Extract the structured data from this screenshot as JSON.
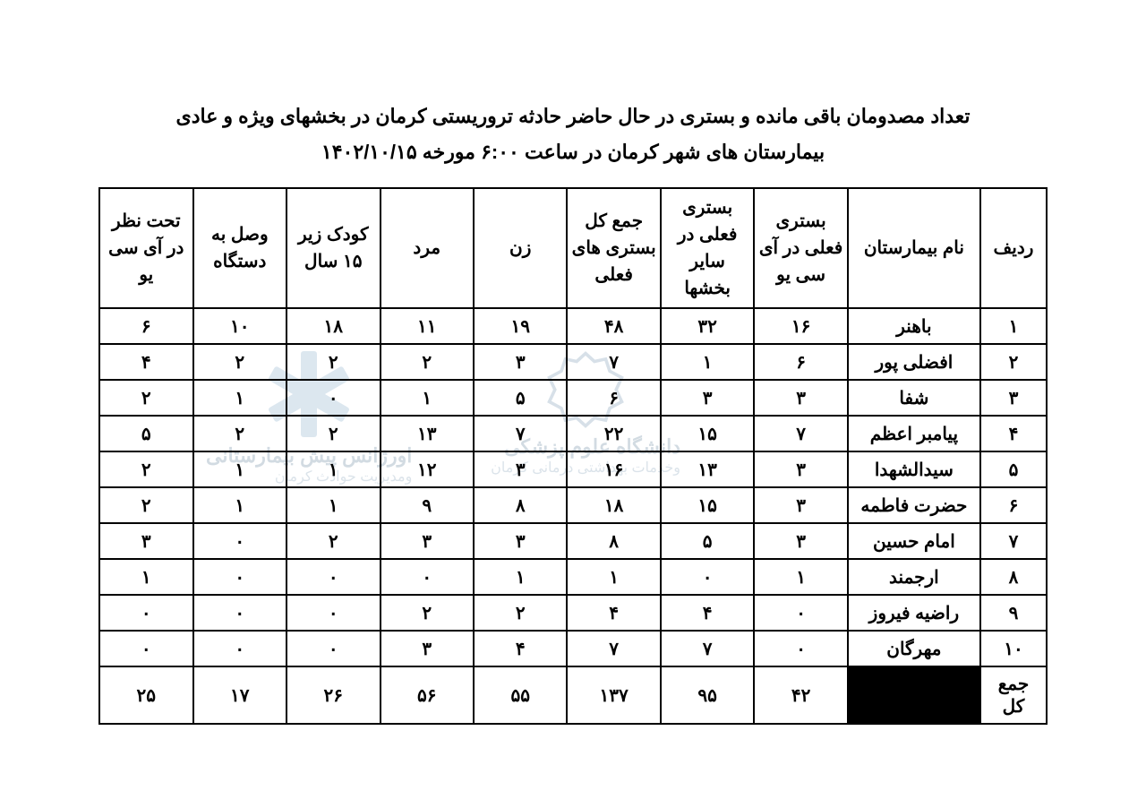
{
  "title": {
    "line1": "تعداد مصدومان باقی مانده و بستری در حال حاضر حادثه تروریستی کرمان در بخشهای ویژه و عادی",
    "line2": "بیمارستان های شهر کرمان در ساعت ۶:۰۰ مورخه ۱۴۰۲/۱۰/۱۵"
  },
  "table": {
    "columns": [
      "ردیف",
      "نام بیمارستان",
      "بستری فعلی در آی سی یو",
      "بستری فعلی در سایر بخشها",
      "جمع کل بستری های فعلی",
      "زن",
      "مرد",
      "کودک زیر ۱۵ سال",
      "وصل به دستگاه",
      "تحت نظر در آی سی یو"
    ],
    "rows": [
      [
        "۱",
        "باهنر",
        "۱۶",
        "۳۲",
        "۴۸",
        "۱۹",
        "۱۱",
        "۱۸",
        "۱۰",
        "۶"
      ],
      [
        "۲",
        "افضلی پور",
        "۶",
        "۱",
        "۷",
        "۳",
        "۲",
        "۲",
        "۲",
        "۴"
      ],
      [
        "۳",
        "شفا",
        "۳",
        "۳",
        "۶",
        "۵",
        "۱",
        "۰",
        "۱",
        "۲"
      ],
      [
        "۴",
        "پیامبر اعظم",
        "۷",
        "۱۵",
        "۲۲",
        "۷",
        "۱۳",
        "۲",
        "۲",
        "۵"
      ],
      [
        "۵",
        "سیدالشهدا",
        "۳",
        "۱۳",
        "۱۶",
        "۳",
        "۱۲",
        "۱",
        "۱",
        "۲"
      ],
      [
        "۶",
        "حضرت فاطمه",
        "۳",
        "۱۵",
        "۱۸",
        "۸",
        "۹",
        "۱",
        "۱",
        "۲"
      ],
      [
        "۷",
        "امام حسین",
        "۳",
        "۵",
        "۸",
        "۳",
        "۳",
        "۲",
        "۰",
        "۳"
      ],
      [
        "۸",
        "ارجمند",
        "۱",
        "۰",
        "۱",
        "۱",
        "۰",
        "۰",
        "۰",
        "۱"
      ],
      [
        "۹",
        "راضیه فیروز",
        "۰",
        "۴",
        "۴",
        "۲",
        "۲",
        "۰",
        "۰",
        "۰"
      ],
      [
        "۱۰",
        "مهرگان",
        "۰",
        "۷",
        "۷",
        "۴",
        "۳",
        "۰",
        "۰",
        "۰"
      ]
    ],
    "total": {
      "label": "جمع کل",
      "values": [
        "۴۲",
        "۹۵",
        "۱۳۷",
        "۵۵",
        "۵۶",
        "۲۶",
        "۱۷",
        "۲۵"
      ]
    }
  },
  "watermarks": {
    "right": {
      "line1": "دانشگاه علوم پزشکی",
      "line2": "وخدمات بهداشتی درمانی کرمان"
    },
    "left": {
      "line1": "اورژانس پیش بیمارستانی",
      "line2": "ومدیریت حوادث کرمان"
    }
  },
  "styling": {
    "page_bg": "#ffffff",
    "border_color": "#000000",
    "text_color": "#000000",
    "title_fontsize": 22,
    "header_fontsize": 20,
    "cell_fontsize": 20,
    "watermark_color": "#7f99ae",
    "black_cell_bg": "#000000"
  }
}
